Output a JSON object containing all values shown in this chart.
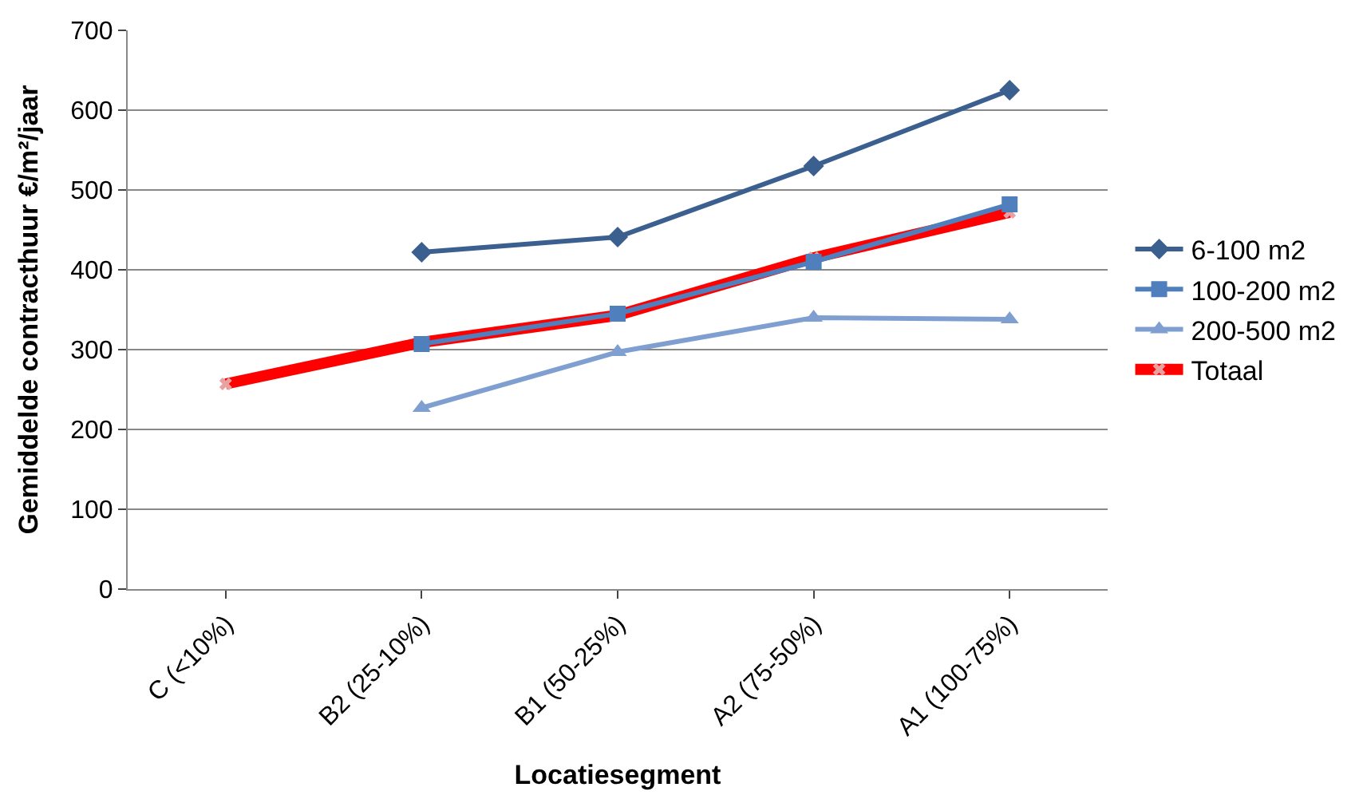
{
  "chart_data": {
    "type": "line",
    "xlabel": "Locatiesegment",
    "ylabel": "Gemiddelde contracthuur €/m²/jaar",
    "categories": [
      "C (<10%)",
      "B2 (25-10%)",
      "B1 (50-25%)",
      "A2 (75-50%)",
      "A1 (100-75%)"
    ],
    "series": [
      {
        "name": "6-100 m2",
        "color": "#3b5f8e",
        "marker": "diamond",
        "values": [
          null,
          422,
          441,
          530,
          625
        ]
      },
      {
        "name": "100-200 m2",
        "color": "#4f7fbd",
        "marker": "square",
        "values": [
          null,
          307,
          345,
          410,
          482
        ]
      },
      {
        "name": "200-500 m2",
        "color": "#7f9fd0",
        "marker": "triangle",
        "values": [
          null,
          227,
          297,
          340,
          338
        ]
      },
      {
        "name": "Totaal",
        "color": "#ff0000",
        "marker": "cross",
        "values": [
          257,
          309,
          343,
          415,
          472
        ]
      }
    ],
    "ylim": [
      0,
      700
    ],
    "yticks": [
      0,
      100,
      200,
      300,
      400,
      500,
      600,
      700
    ],
    "grid": "y",
    "legend": "right"
  }
}
